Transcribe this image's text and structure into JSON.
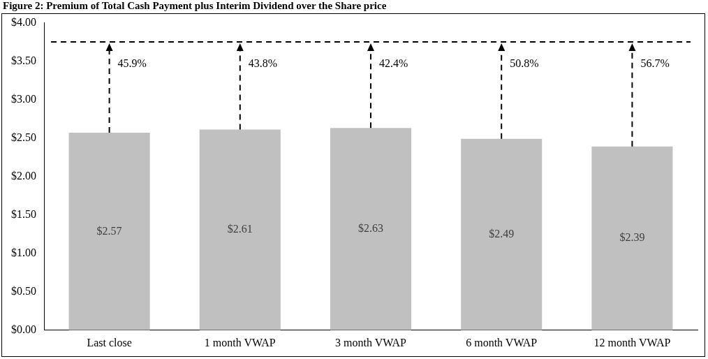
{
  "chart_data": {
    "type": "bar",
    "title": "Figure 2: Premium of Total Cash Payment plus Interim Dividend over the Share price",
    "categories": [
      "Last close",
      "1 month VWAP",
      "3 month VWAP",
      "6 month VWAP",
      "12 month VWAP"
    ],
    "values": [
      2.57,
      2.61,
      2.63,
      2.49,
      2.39
    ],
    "color": "#c0c0c0",
    "value_labels": [
      "$2.57",
      "$2.61",
      "$2.63",
      "$2.49",
      "$2.39"
    ],
    "ylim": [
      0,
      4
    ],
    "yticks": [
      {
        "value": 0,
        "label": "$0.00"
      },
      {
        "value": 0.5,
        "label": "$0.50"
      },
      {
        "value": 1,
        "label": "$1.00"
      },
      {
        "value": 1.5,
        "label": "$1.50"
      },
      {
        "value": 2,
        "label": "$2.00"
      },
      {
        "value": 2.5,
        "label": "$2.50"
      },
      {
        "value": 3,
        "label": "$3.00"
      },
      {
        "value": 3.5,
        "label": "$3.50"
      },
      {
        "value": 4,
        "label": "$4.00"
      }
    ],
    "grid": false,
    "legend": false,
    "ref_lines": [
      {
        "axis": "y",
        "value": 3.75,
        "color": "#000000",
        "line_style": "dashed"
      }
    ],
    "annotations": [
      "45.9%",
      "43.8%",
      "42.4%",
      "50.8%",
      "56.7%"
    ]
  }
}
